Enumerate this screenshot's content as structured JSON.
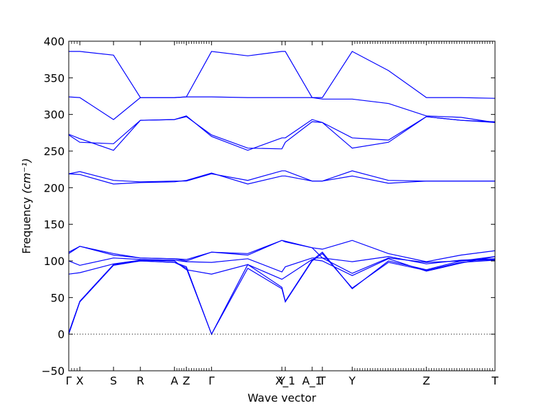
{
  "chart_data": {
    "type": "line",
    "xlabel": "Wave vector",
    "ylabel": "Frequency",
    "ylabel_unit": "(cm⁻¹)",
    "ylim": [
      -50,
      400
    ],
    "yticks": [
      -50,
      0,
      50,
      100,
      150,
      200,
      250,
      300,
      350,
      400
    ],
    "xlim": [
      0,
      1
    ],
    "high_symmetry_points": [
      {
        "label": "Γ",
        "x": 0.0
      },
      {
        "label": "X",
        "x": 0.026
      },
      {
        "label": "S",
        "x": 0.105
      },
      {
        "label": "R",
        "x": 0.168
      },
      {
        "label": "A",
        "x": 0.248
      },
      {
        "label": "Z",
        "x": 0.276
      },
      {
        "label": "Γ",
        "x": 0.335
      },
      {
        "label": "Y",
        "x": 0.5
      },
      {
        "label": "X_1",
        "x": 0.508
      },
      {
        "label": "A_1",
        "x": 0.571
      },
      {
        "label": "T",
        "x": 0.595
      },
      {
        "label": "Y",
        "x": 0.665
      },
      {
        "label": "Z",
        "x": 0.839
      },
      {
        "label": "T",
        "x": 1.0
      }
    ],
    "zero_line": {
      "y": 0,
      "style": "dotted"
    },
    "series": [
      {
        "x": [
          0,
          0.026,
          0.105,
          0.168,
          0.248,
          0.276,
          0.335,
          0.42,
          0.5,
          0.508,
          0.571,
          0.595,
          0.665,
          0.75,
          0.839,
          0.92,
          1.0
        ],
        "values": [
          0,
          44,
          94,
          100,
          98,
          92,
          0,
          90,
          62,
          44,
          100,
          110,
          63,
          98,
          87,
          98,
          101
        ]
      },
      {
        "x": [
          0,
          0.026,
          0.105,
          0.168,
          0.248,
          0.276,
          0.335,
          0.42,
          0.5,
          0.508,
          0.571,
          0.595,
          0.665,
          0.75,
          0.839,
          0.92,
          1.0
        ],
        "values": [
          2,
          45,
          95,
          100,
          98,
          90,
          0,
          95,
          64,
          45,
          101,
          112,
          62,
          100,
          88,
          100,
          102
        ]
      },
      {
        "x": [
          0,
          0.026,
          0.105,
          0.168,
          0.248,
          0.276,
          0.335,
          0.42,
          0.5,
          0.508,
          0.571,
          0.595,
          0.665,
          0.75,
          0.839,
          0.92,
          1.0
        ],
        "values": [
          82,
          84,
          96,
          101,
          100,
          88,
          82,
          95,
          75,
          78,
          102,
          100,
          80,
          103,
          86,
          97,
          106
        ]
      },
      {
        "x": [
          0,
          0.026,
          0.105,
          0.168,
          0.248,
          0.276,
          0.335,
          0.42,
          0.5,
          0.508,
          0.571,
          0.595,
          0.665,
          0.75,
          0.839,
          0.92,
          1.0
        ],
        "values": [
          100,
          94,
          104,
          102,
          101,
          99,
          98,
          103,
          85,
          92,
          104,
          104,
          83,
          104,
          98,
          100,
          106
        ]
      },
      {
        "x": [
          0,
          0.026,
          0.105,
          0.168,
          0.248,
          0.276,
          0.335,
          0.42,
          0.5,
          0.508,
          0.571,
          0.595,
          0.665,
          0.75,
          0.839,
          0.92,
          1.0
        ],
        "values": [
          112,
          120,
          110,
          104,
          103,
          102,
          112,
          108,
          128,
          127,
          118,
          104,
          99,
          106,
          96,
          101,
          103
        ]
      },
      {
        "x": [
          0,
          0.026,
          0.105,
          0.168,
          0.248,
          0.276,
          0.335,
          0.42,
          0.5,
          0.508,
          0.571,
          0.595,
          0.665,
          0.75,
          0.839,
          0.92,
          1.0
        ],
        "values": [
          110,
          120,
          108,
          104,
          103,
          100,
          112,
          110,
          128,
          126,
          118,
          116,
          128,
          110,
          99,
          108,
          114
        ]
      },
      {
        "x": [
          0,
          0.026,
          0.105,
          0.168,
          0.248,
          0.276,
          0.335,
          0.42,
          0.5,
          0.508,
          0.571,
          0.595,
          0.665,
          0.75,
          0.839,
          0.92,
          1.0
        ],
        "values": [
          219,
          222,
          210,
          208,
          209,
          209,
          219,
          210,
          223,
          223,
          209,
          209,
          223,
          210,
          209,
          209,
          209
        ]
      },
      {
        "x": [
          0,
          0.026,
          0.105,
          0.168,
          0.248,
          0.276,
          0.335,
          0.42,
          0.5,
          0.508,
          0.571,
          0.595,
          0.665,
          0.75,
          0.839,
          0.92,
          1.0
        ],
        "values": [
          219,
          218,
          205,
          207,
          208,
          210,
          220,
          205,
          216,
          216,
          209,
          209,
          216,
          206,
          209,
          209,
          209
        ]
      },
      {
        "x": [
          0,
          0.026,
          0.105,
          0.168,
          0.248,
          0.276,
          0.335,
          0.42,
          0.5,
          0.508,
          0.571,
          0.595,
          0.665,
          0.75,
          0.839,
          0.92,
          1.0
        ],
        "values": [
          272,
          262,
          260,
          292,
          293,
          297,
          272,
          254,
          253,
          262,
          290,
          289,
          254,
          262,
          297,
          292,
          290
        ]
      },
      {
        "x": [
          0,
          0.026,
          0.105,
          0.168,
          0.248,
          0.276,
          0.335,
          0.42,
          0.5,
          0.508,
          0.571,
          0.595,
          0.665,
          0.75,
          0.839,
          0.92,
          1.0
        ],
        "values": [
          273,
          267,
          251,
          292,
          293,
          298,
          270,
          251,
          268,
          268,
          293,
          289,
          268,
          265,
          297,
          292,
          289
        ]
      },
      {
        "x": [
          0,
          0.026,
          0.105,
          0.168,
          0.248,
          0.276,
          0.335,
          0.42,
          0.5,
          0.508,
          0.571,
          0.595,
          0.665,
          0.75,
          0.839,
          0.92,
          1.0
        ],
        "values": [
          324,
          323,
          293,
          323,
          323,
          324,
          324,
          323,
          323,
          323,
          323,
          321,
          321,
          315,
          298,
          296,
          289
        ]
      },
      {
        "x": [
          0,
          0.026,
          0.105,
          0.168,
          0.248,
          0.276,
          0.335,
          0.42,
          0.5,
          0.508,
          0.571,
          0.595,
          0.665,
          0.75,
          0.839,
          0.92,
          1.0
        ],
        "values": [
          386,
          386,
          381,
          323,
          323,
          324,
          386,
          380,
          386,
          386,
          323,
          323,
          386,
          360,
          323,
          323,
          322
        ]
      }
    ]
  }
}
